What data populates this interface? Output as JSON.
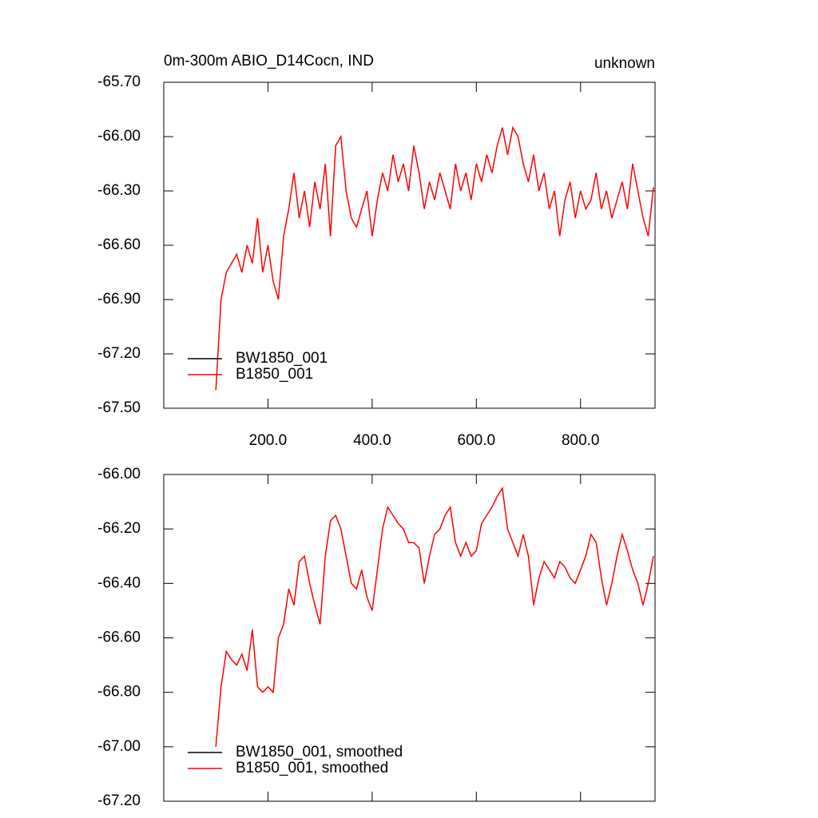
{
  "chart_data": [
    {
      "type": "line",
      "title": "0m-300m ABIO_D14Cocn, IND",
      "right_title": "unknown",
      "x": [
        100,
        110,
        120,
        130,
        140,
        150,
        160,
        170,
        180,
        190,
        200,
        210,
        220,
        230,
        240,
        250,
        260,
        270,
        280,
        290,
        300,
        310,
        320,
        330,
        340,
        350,
        360,
        370,
        380,
        390,
        400,
        410,
        420,
        430,
        440,
        450,
        460,
        470,
        480,
        490,
        500,
        510,
        520,
        530,
        540,
        550,
        560,
        570,
        580,
        590,
        600,
        610,
        620,
        630,
        640,
        650,
        660,
        670,
        680,
        690,
        700,
        710,
        720,
        730,
        740,
        750,
        760,
        770,
        780,
        790,
        800,
        810,
        820,
        830,
        840,
        850,
        860,
        870,
        880,
        890,
        900,
        910,
        920,
        930,
        940
      ],
      "series": [
        {
          "name": "BW1850_001",
          "color": "#000000",
          "values": [
            null,
            null,
            null,
            null,
            null,
            null,
            null,
            null,
            null,
            null,
            null,
            null,
            null,
            null,
            null,
            null,
            null,
            null,
            null,
            null,
            null,
            null,
            null,
            null,
            null,
            null,
            null,
            null,
            null,
            null,
            null,
            null,
            null,
            null,
            null,
            null,
            null,
            null,
            null,
            null,
            null,
            null,
            null,
            null,
            null,
            null,
            null,
            null,
            null,
            null,
            null,
            null,
            null,
            null,
            null,
            null,
            null,
            null,
            null,
            null,
            null,
            null,
            null,
            null,
            null,
            null,
            null,
            null,
            null,
            null,
            null,
            null,
            null,
            null,
            null,
            null,
            null,
            null,
            null,
            null,
            null,
            null,
            null,
            null,
            null
          ]
        },
        {
          "name": "B1850_001",
          "color": "#ff0000",
          "values": [
            -67.4,
            -66.9,
            -66.75,
            -66.7,
            -66.65,
            -66.75,
            -66.6,
            -66.7,
            -66.45,
            -66.75,
            -66.6,
            -66.8,
            -66.9,
            -66.55,
            -66.4,
            -66.2,
            -66.45,
            -66.3,
            -66.5,
            -66.25,
            -66.4,
            -66.15,
            -66.55,
            -66.05,
            -66.0,
            -66.3,
            -66.45,
            -66.5,
            -66.4,
            -66.3,
            -66.55,
            -66.35,
            -66.2,
            -66.3,
            -66.1,
            -66.25,
            -66.15,
            -66.3,
            -66.05,
            -66.2,
            -66.4,
            -66.25,
            -66.35,
            -66.2,
            -66.3,
            -66.4,
            -66.15,
            -66.3,
            -66.2,
            -66.35,
            -66.15,
            -66.25,
            -66.1,
            -66.2,
            -66.05,
            -65.95,
            -66.1,
            -65.95,
            -66.0,
            -66.15,
            -66.25,
            -66.1,
            -66.3,
            -66.2,
            -66.4,
            -66.3,
            -66.55,
            -66.35,
            -66.25,
            -66.45,
            -66.3,
            -66.4,
            -66.35,
            -66.2,
            -66.4,
            -66.3,
            -66.45,
            -66.35,
            -66.25,
            -66.4,
            -66.15,
            -66.3,
            -66.45,
            -66.55,
            -66.28
          ]
        }
      ],
      "xlim": [
        0,
        943
      ],
      "xticks": [
        {
          "value": 200,
          "label": "200.0"
        },
        {
          "value": 400,
          "label": "400.0"
        },
        {
          "value": 600,
          "label": "600.0"
        },
        {
          "value": 800,
          "label": "800.0"
        }
      ],
      "ylim": [
        -67.5,
        -65.7
      ],
      "yticks": [
        {
          "value": -67.5,
          "label": "-67.50"
        },
        {
          "value": -67.2,
          "label": "-67.20"
        },
        {
          "value": -66.9,
          "label": "-66.90"
        },
        {
          "value": -66.6,
          "label": "-66.60"
        },
        {
          "value": -66.3,
          "label": "-66.30"
        },
        {
          "value": -66.0,
          "label": "-66.00"
        },
        {
          "value": -65.7,
          "label": "-65.70"
        }
      ],
      "legend": "lower left"
    },
    {
      "type": "line",
      "x": [
        100,
        110,
        120,
        130,
        140,
        150,
        160,
        170,
        180,
        190,
        200,
        210,
        220,
        230,
        240,
        250,
        260,
        270,
        280,
        290,
        300,
        310,
        320,
        330,
        340,
        350,
        360,
        370,
        380,
        390,
        400,
        410,
        420,
        430,
        440,
        450,
        460,
        470,
        480,
        490,
        500,
        510,
        520,
        530,
        540,
        550,
        560,
        570,
        580,
        590,
        600,
        610,
        620,
        630,
        640,
        650,
        660,
        670,
        680,
        690,
        700,
        710,
        720,
        730,
        740,
        750,
        760,
        770,
        780,
        790,
        800,
        810,
        820,
        830,
        840,
        850,
        860,
        870,
        880,
        890,
        900,
        910,
        920,
        930,
        940
      ],
      "series": [
        {
          "name": "BW1850_001, smoothed",
          "color": "#000000",
          "values": [
            null,
            null,
            null,
            null,
            null,
            null,
            null,
            null,
            null,
            null,
            null,
            null,
            null,
            null,
            null,
            null,
            null,
            null,
            null,
            null,
            null,
            null,
            null,
            null,
            null,
            null,
            null,
            null,
            null,
            null,
            null,
            null,
            null,
            null,
            null,
            null,
            null,
            null,
            null,
            null,
            null,
            null,
            null,
            null,
            null,
            null,
            null,
            null,
            null,
            null,
            null,
            null,
            null,
            null,
            null,
            null,
            null,
            null,
            null,
            null,
            null,
            null,
            null,
            null,
            null,
            null,
            null,
            null,
            null,
            null,
            null,
            null,
            null,
            null,
            null,
            null,
            null,
            null,
            null,
            null,
            null,
            null,
            null,
            null,
            null
          ]
        },
        {
          "name": "B1850_001, smoothed",
          "color": "#ff0000",
          "values": [
            -67.0,
            -66.78,
            -66.65,
            -66.68,
            -66.7,
            -66.66,
            -66.72,
            -66.57,
            -66.78,
            -66.8,
            -66.78,
            -66.8,
            -66.6,
            -66.55,
            -66.42,
            -66.48,
            -66.32,
            -66.3,
            -66.4,
            -66.48,
            -66.55,
            -66.3,
            -66.17,
            -66.15,
            -66.2,
            -66.3,
            -66.4,
            -66.42,
            -66.35,
            -66.45,
            -66.5,
            -66.35,
            -66.2,
            -66.12,
            -66.15,
            -66.18,
            -66.2,
            -66.25,
            -66.25,
            -66.27,
            -66.4,
            -66.3,
            -66.22,
            -66.2,
            -66.15,
            -66.12,
            -66.25,
            -66.3,
            -66.25,
            -66.3,
            -66.28,
            -66.18,
            -66.15,
            -66.12,
            -66.08,
            -66.05,
            -66.2,
            -66.25,
            -66.3,
            -66.22,
            -66.3,
            -66.48,
            -66.38,
            -66.32,
            -66.35,
            -66.38,
            -66.32,
            -66.34,
            -66.38,
            -66.4,
            -66.35,
            -66.3,
            -66.22,
            -66.25,
            -66.38,
            -66.48,
            -66.4,
            -66.3,
            -66.22,
            -66.28,
            -66.35,
            -66.4,
            -66.48,
            -66.4,
            -66.3
          ]
        }
      ],
      "xlim": [
        0,
        943
      ],
      "ylim": [
        -67.2,
        -66.0
      ],
      "yticks": [
        {
          "value": -67.2,
          "label": "-67.20"
        },
        {
          "value": -67.0,
          "label": "-67.00"
        },
        {
          "value": -66.8,
          "label": "-66.80"
        },
        {
          "value": -66.6,
          "label": "-66.60"
        },
        {
          "value": -66.4,
          "label": "-66.40"
        },
        {
          "value": -66.2,
          "label": "-66.20"
        },
        {
          "value": -66.0,
          "label": "-66.00"
        }
      ],
      "legend": "lower left"
    }
  ]
}
